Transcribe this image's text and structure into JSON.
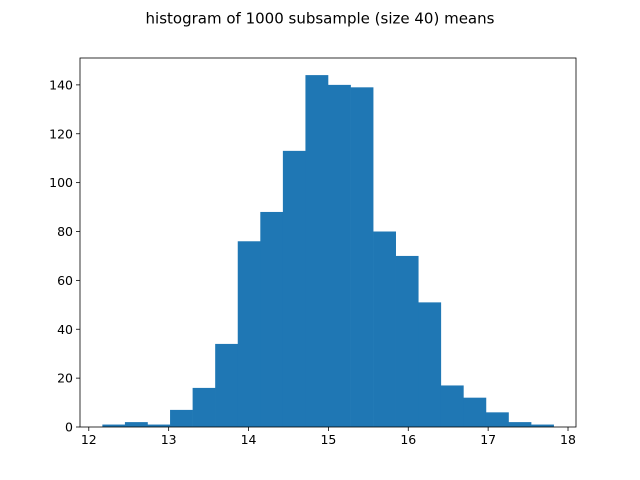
{
  "chart_data": {
    "type": "histogram",
    "title": "histogram of 1000 subsample (size 40) means",
    "xlabel": "",
    "ylabel": "",
    "color": "#1f77b4",
    "bin_start": 12.17,
    "bin_width": 0.2825,
    "counts": [
      1,
      2,
      1,
      7,
      16,
      34,
      76,
      88,
      113,
      144,
      140,
      139,
      80,
      70,
      51,
      17,
      12,
      6,
      2,
      1
    ],
    "xlim": [
      11.89,
      18.1
    ],
    "ylim": [
      0,
      151
    ],
    "xticks": [
      12,
      13,
      14,
      15,
      16,
      17,
      18
    ],
    "yticks": [
      0,
      20,
      40,
      60,
      80,
      100,
      120,
      140
    ],
    "grid": false
  }
}
